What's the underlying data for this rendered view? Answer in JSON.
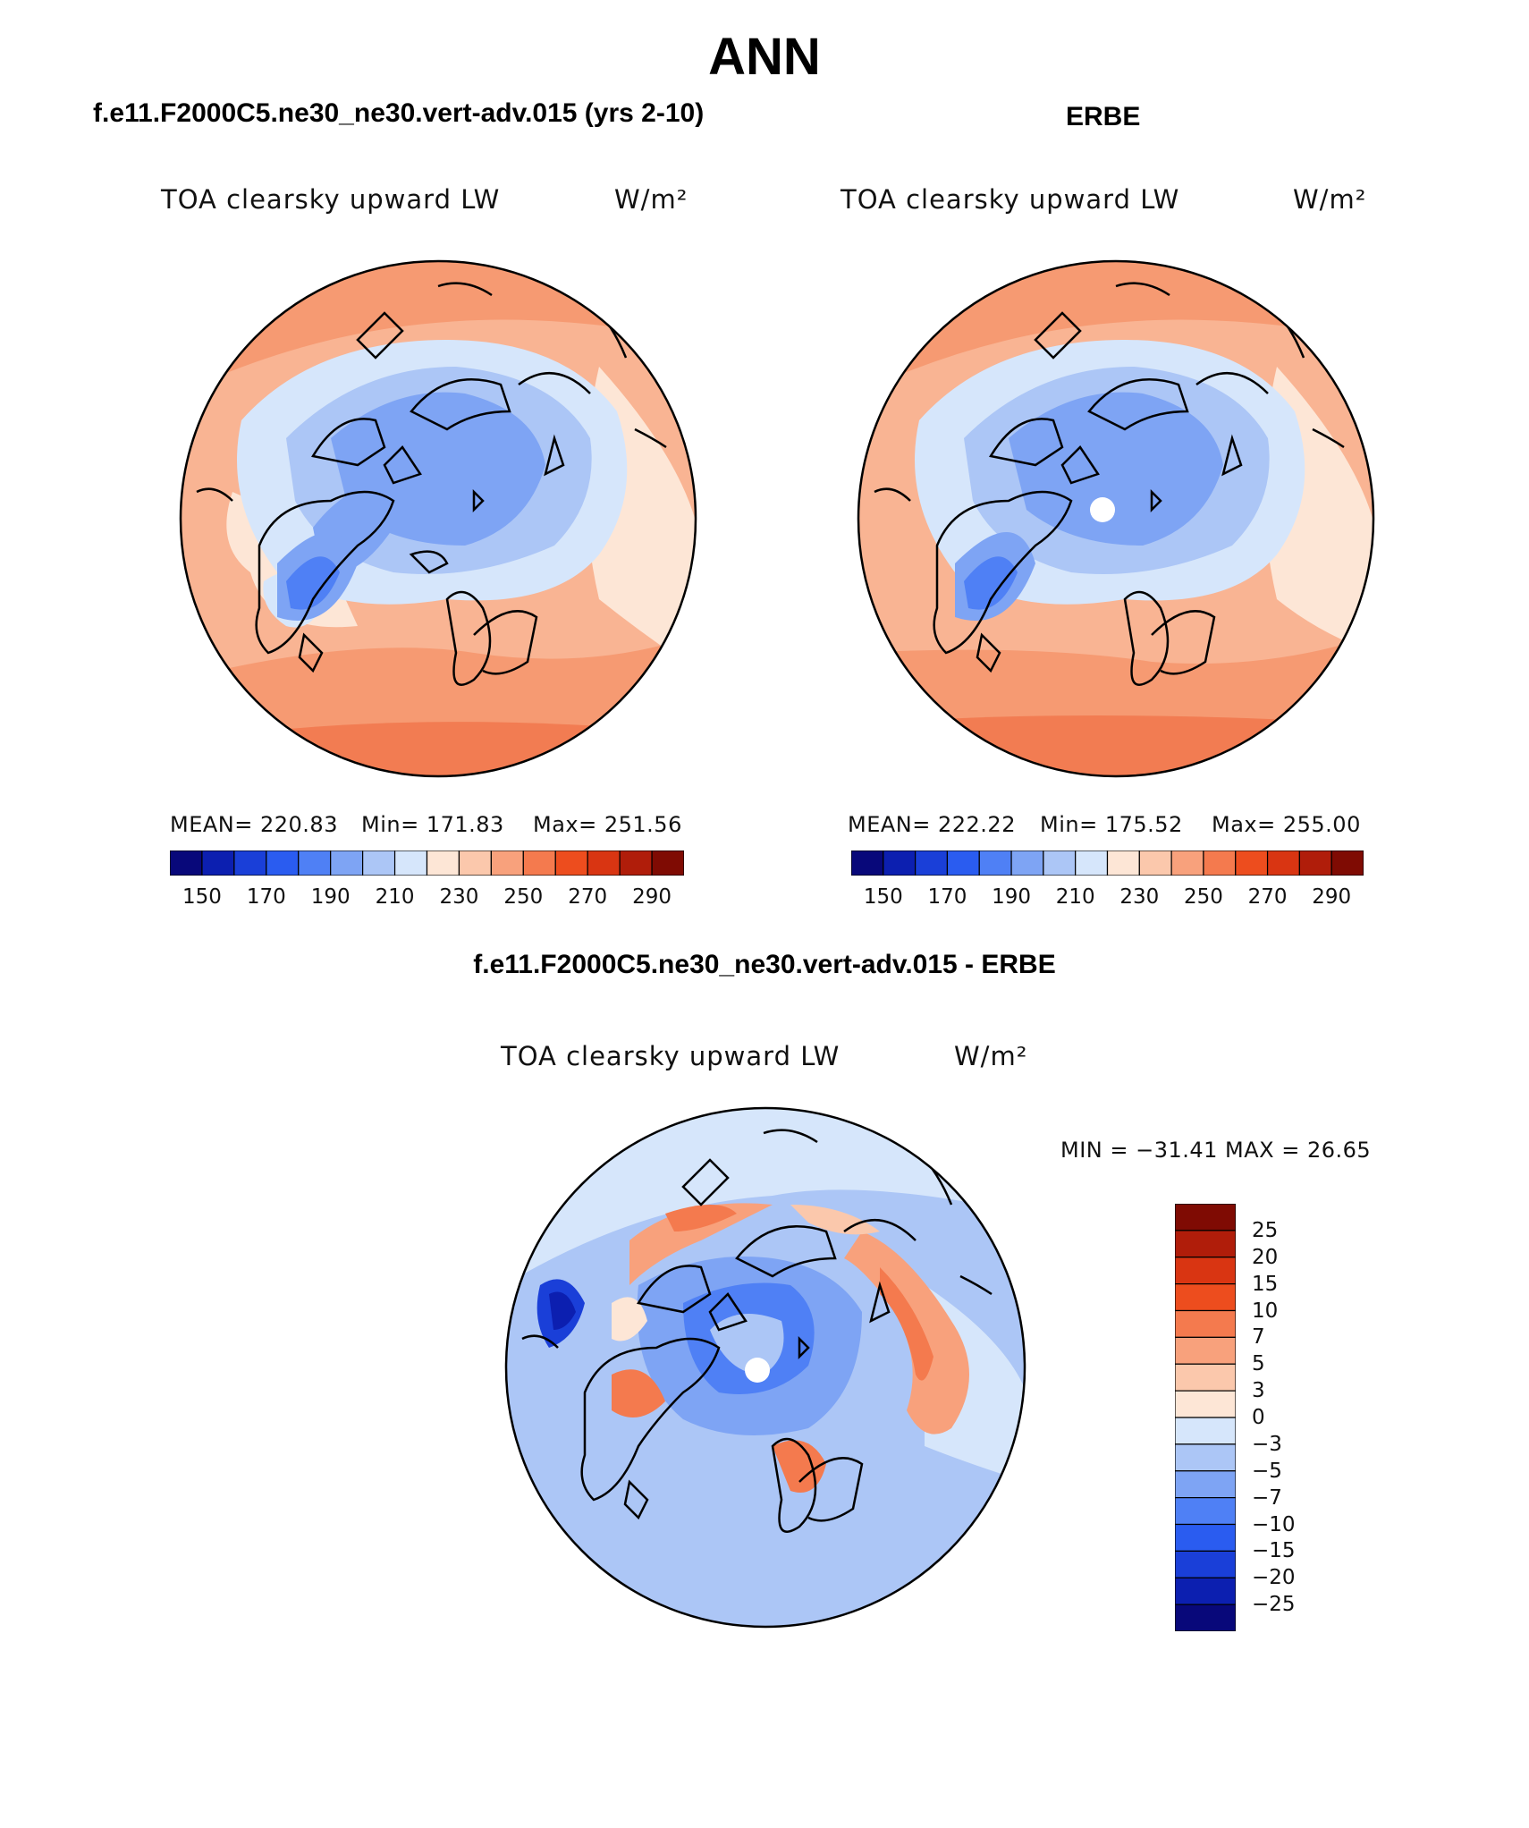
{
  "main_title": "ANN",
  "panels": {
    "model": {
      "heading": "f.e11.F2000C5.ne30_ne30.vert-adv.015 (yrs 2-10)",
      "variable": "TOA clearsky upward LW",
      "units": "W/m²",
      "mean_text": "MEAN= 220.83",
      "min_text": "Min= 171.83",
      "max_text": "Max= 251.56"
    },
    "obs": {
      "heading": "ERBE",
      "variable": "TOA clearsky upward LW",
      "units": "W/m²",
      "mean_text": "MEAN= 222.22",
      "min_text": "Min= 175.52",
      "max_text": "Max= 255.00"
    },
    "diff": {
      "heading": "f.e11.F2000C5.ne30_ne30.vert-adv.015 - ERBE",
      "variable": "TOA clearsky upward LW",
      "units": "W/m²",
      "minmax_text": "MIN = −31.41 MAX =  26.65"
    }
  },
  "colorbar_abs": {
    "colors": [
      "#08087a",
      "#0c1fb0",
      "#1a3fd8",
      "#2a5cf0",
      "#4f80f5",
      "#7ea4f4",
      "#acc6f6",
      "#d6e6fb",
      "#fde6d6",
      "#fbc8ac",
      "#f8a17c",
      "#f47a4e",
      "#ed4d1e",
      "#d93512",
      "#b01d0a",
      "#7f0b03"
    ],
    "ticks": [
      "150",
      "170",
      "190",
      "210",
      "230",
      "250",
      "270",
      "290"
    ]
  },
  "colorbar_diff": {
    "colors": [
      "#08087a",
      "#0c1fb0",
      "#1a3fd8",
      "#2a5cf0",
      "#4f80f5",
      "#7ea4f4",
      "#acc6f6",
      "#d6e6fb",
      "#fde6d6",
      "#fbc8ac",
      "#f8a17c",
      "#f47a4e",
      "#ed4d1e",
      "#d93512",
      "#b01d0a",
      "#7f0b03"
    ],
    "ticks": [
      "25",
      "20",
      "15",
      "10",
      "7",
      "5",
      "3",
      "0",
      "−3",
      "−5",
      "−7",
      "−10",
      "−15",
      "−20",
      "−25"
    ]
  }
}
